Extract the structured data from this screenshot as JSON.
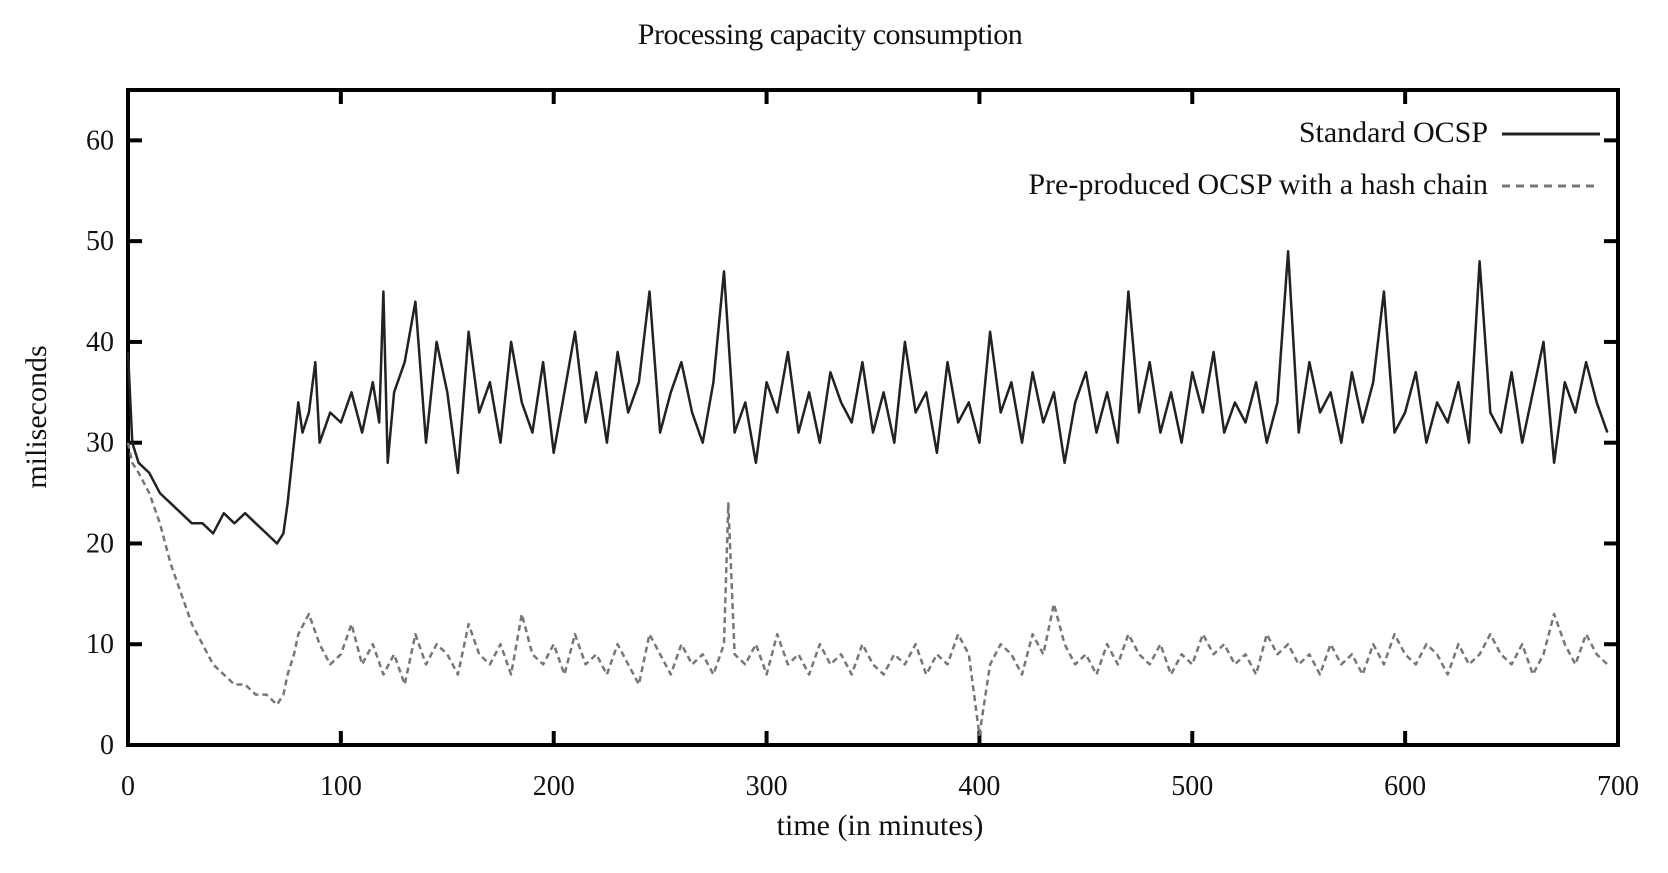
{
  "chart_data": {
    "type": "line",
    "title": "Processing capacity consumption",
    "xlabel": "time (in minutes)",
    "ylabel": "miliseconds",
    "xlim": [
      0,
      700
    ],
    "ylim": [
      0,
      65
    ],
    "x_ticks": [
      0,
      100,
      200,
      300,
      400,
      500,
      600,
      700
    ],
    "y_ticks": [
      0,
      10,
      20,
      30,
      40,
      50,
      60
    ],
    "grid": false,
    "legend_position": "top-right",
    "series": [
      {
        "name": "Standard OCSP",
        "color": "#222222",
        "style": "solid",
        "x": [
          0,
          2,
          5,
          10,
          15,
          20,
          25,
          30,
          35,
          40,
          45,
          50,
          55,
          60,
          65,
          70,
          73,
          75,
          78,
          80,
          82,
          85,
          88,
          90,
          95,
          100,
          105,
          110,
          115,
          118,
          120,
          122,
          125,
          130,
          135,
          140,
          145,
          150,
          155,
          160,
          165,
          170,
          175,
          180,
          185,
          190,
          195,
          200,
          205,
          210,
          215,
          220,
          225,
          230,
          235,
          240,
          245,
          250,
          255,
          260,
          265,
          270,
          275,
          280,
          285,
          290,
          295,
          300,
          305,
          310,
          315,
          320,
          325,
          330,
          335,
          340,
          345,
          350,
          355,
          360,
          365,
          370,
          375,
          380,
          385,
          390,
          395,
          400,
          405,
          410,
          415,
          420,
          425,
          430,
          435,
          440,
          445,
          450,
          455,
          460,
          465,
          470,
          475,
          480,
          485,
          490,
          495,
          500,
          505,
          510,
          515,
          520,
          525,
          530,
          535,
          540,
          545,
          550,
          555,
          560,
          565,
          570,
          575,
          580,
          585,
          590,
          595,
          600,
          605,
          610,
          615,
          620,
          625,
          630,
          635,
          640,
          645,
          650,
          655,
          660,
          665,
          670,
          675,
          680,
          685,
          690,
          695
        ],
        "values": [
          39,
          30,
          28,
          27,
          25,
          24,
          23,
          22,
          22,
          21,
          23,
          22,
          23,
          22,
          21,
          20,
          21,
          24,
          30,
          34,
          31,
          33,
          38,
          30,
          33,
          32,
          35,
          31,
          36,
          32,
          45,
          28,
          35,
          38,
          44,
          30,
          40,
          35,
          27,
          41,
          33,
          36,
          30,
          40,
          34,
          31,
          38,
          29,
          35,
          41,
          32,
          37,
          30,
          39,
          33,
          36,
          45,
          31,
          35,
          38,
          33,
          30,
          36,
          47,
          31,
          34,
          28,
          36,
          33,
          39,
          31,
          35,
          30,
          37,
          34,
          32,
          38,
          31,
          35,
          30,
          40,
          33,
          35,
          29,
          38,
          32,
          34,
          30,
          41,
          33,
          36,
          30,
          37,
          32,
          35,
          28,
          34,
          37,
          31,
          35,
          30,
          45,
          33,
          38,
          31,
          35,
          30,
          37,
          33,
          39,
          31,
          34,
          32,
          36,
          30,
          34,
          49,
          31,
          38,
          33,
          35,
          30,
          37,
          32,
          36,
          45,
          31,
          33,
          37,
          30,
          34,
          32,
          36,
          30,
          48,
          33,
          31,
          37,
          30,
          35,
          40,
          28,
          36,
          33,
          38,
          34,
          31
        ]
      },
      {
        "name": "Pre-produced OCSP with a hash chain",
        "color": "#777777",
        "style": "dashed",
        "x": [
          0,
          2,
          5,
          10,
          15,
          20,
          25,
          30,
          35,
          40,
          45,
          50,
          55,
          60,
          65,
          70,
          73,
          75,
          78,
          80,
          85,
          90,
          95,
          100,
          105,
          110,
          115,
          120,
          125,
          130,
          135,
          140,
          145,
          150,
          155,
          160,
          165,
          170,
          175,
          180,
          185,
          190,
          195,
          200,
          205,
          210,
          215,
          220,
          225,
          230,
          235,
          240,
          245,
          250,
          255,
          260,
          265,
          270,
          275,
          280,
          282,
          285,
          290,
          295,
          300,
          305,
          310,
          315,
          320,
          325,
          330,
          335,
          340,
          345,
          350,
          355,
          360,
          365,
          370,
          375,
          380,
          385,
          390,
          395,
          400,
          405,
          410,
          415,
          420,
          425,
          430,
          435,
          440,
          445,
          450,
          455,
          460,
          465,
          470,
          475,
          480,
          485,
          490,
          495,
          500,
          505,
          510,
          515,
          520,
          525,
          530,
          535,
          540,
          545,
          550,
          555,
          560,
          565,
          570,
          575,
          580,
          585,
          590,
          595,
          600,
          605,
          610,
          615,
          620,
          625,
          630,
          635,
          640,
          645,
          650,
          655,
          660,
          665,
          670,
          675,
          680,
          685,
          690,
          695
        ],
        "values": [
          30,
          28,
          27,
          25,
          22,
          18,
          15,
          12,
          10,
          8,
          7,
          6,
          6,
          5,
          5,
          4,
          5,
          7,
          9,
          11,
          13,
          10,
          8,
          9,
          12,
          8,
          10,
          7,
          9,
          6,
          11,
          8,
          10,
          9,
          7,
          12,
          9,
          8,
          10,
          7,
          13,
          9,
          8,
          10,
          7,
          11,
          8,
          9,
          7,
          10,
          8,
          6,
          11,
          9,
          7,
          10,
          8,
          9,
          7,
          10,
          24,
          9,
          8,
          10,
          7,
          11,
          8,
          9,
          7,
          10,
          8,
          9,
          7,
          10,
          8,
          7,
          9,
          8,
          10,
          7,
          9,
          8,
          11,
          9,
          1,
          8,
          10,
          9,
          7,
          11,
          9,
          14,
          10,
          8,
          9,
          7,
          10,
          8,
          11,
          9,
          8,
          10,
          7,
          9,
          8,
          11,
          9,
          10,
          8,
          9,
          7,
          11,
          9,
          10,
          8,
          9,
          7,
          10,
          8,
          9,
          7,
          10,
          8,
          11,
          9,
          8,
          10,
          9,
          7,
          10,
          8,
          9,
          11,
          9,
          8,
          10,
          7,
          9,
          13,
          10,
          8,
          11,
          9,
          8
        ]
      }
    ]
  }
}
